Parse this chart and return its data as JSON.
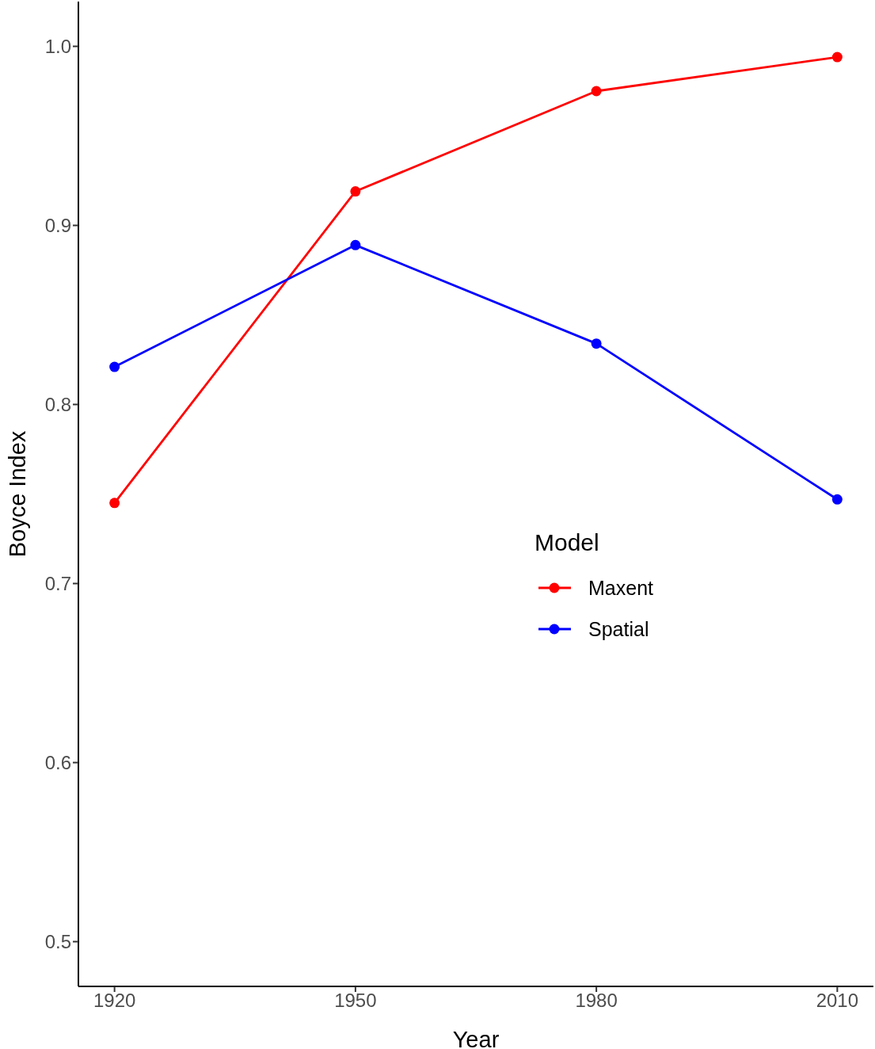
{
  "chart_data": {
    "type": "line",
    "xlabel": "Year",
    "ylabel": "Boyce Index",
    "legend_title": "Model",
    "x": [
      1920,
      1950,
      1980,
      2010
    ],
    "series": [
      {
        "name": "Maxent",
        "color": "#ff0000",
        "values": [
          0.745,
          0.919,
          0.975,
          0.994
        ]
      },
      {
        "name": "Spatial",
        "color": "#0000ff",
        "values": [
          0.821,
          0.889,
          0.834,
          0.747
        ]
      }
    ],
    "xlim": [
      1915.5,
      2014.5
    ],
    "xticks": [
      1920,
      1950,
      1980,
      2010
    ],
    "ylim": [
      0.475,
      1.025
    ],
    "yticks": [
      0.5,
      0.6,
      0.7,
      0.8,
      0.9,
      {
        "value": 1,
        "label": "1.0"
      }
    ],
    "grid": false,
    "legend": "right",
    "marker": "circle",
    "line_style": "solid"
  }
}
